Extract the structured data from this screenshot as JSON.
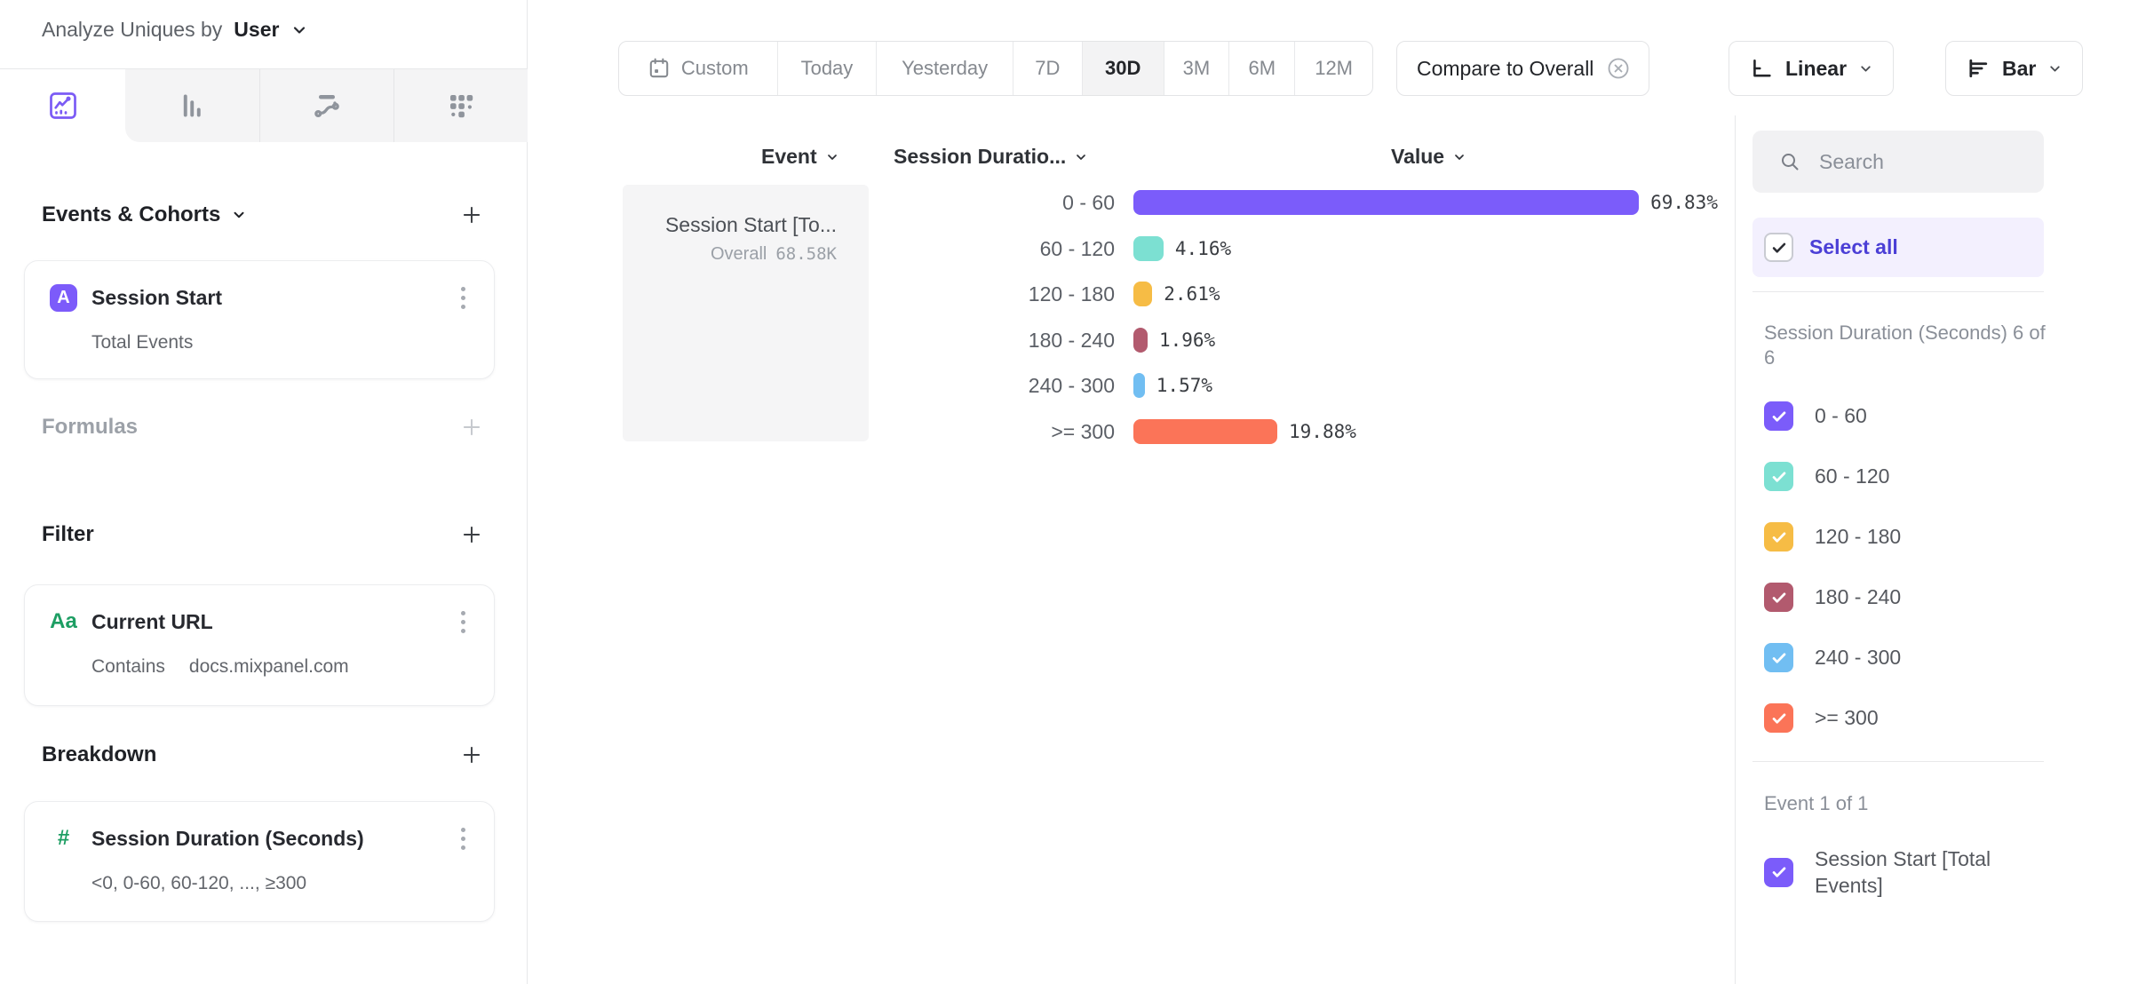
{
  "header": {
    "label": "Analyze Uniques by",
    "metric": "User"
  },
  "left_tabs": [
    {
      "name": "insights",
      "active": true
    },
    {
      "name": "bar-chart",
      "active": false
    },
    {
      "name": "flows",
      "active": false
    },
    {
      "name": "retention",
      "active": false
    }
  ],
  "builder": {
    "events_section_title": "Events & Cohorts",
    "event_card": {
      "badge": "A",
      "title": "Session Start",
      "subtitle": "Total Events"
    },
    "formulas_section_title": "Formulas",
    "filter_section_title": "Filter",
    "filter_card": {
      "badge": "Aa",
      "title": "Current URL",
      "operator": "Contains",
      "value": "docs.mixpanel.com"
    },
    "breakdown_section_title": "Breakdown",
    "breakdown_card": {
      "badge": "#",
      "title": "Session Duration (Seconds)",
      "subtitle": "<0, 0-60, 60-120, ..., ≥300"
    }
  },
  "toolbar": {
    "date_ranges": [
      "Custom",
      "Today",
      "Yesterday",
      "7D",
      "30D",
      "3M",
      "6M",
      "12M"
    ],
    "active_range": "30D",
    "compare_label": "Compare to Overall",
    "linear_label": "Linear",
    "bar_label": "Bar"
  },
  "chart": {
    "columns": {
      "event": "Event",
      "breakdown": "Session Duratio...",
      "value": "Value"
    },
    "event_name": "Session Start [To...",
    "overall_label": "Overall",
    "overall_value": "68.58K",
    "rows": [
      {
        "label": "0 - 60",
        "value": 69.83,
        "pct": "69.83%",
        "color": "#7B5CFA"
      },
      {
        "label": "60 - 120",
        "value": 4.16,
        "pct": "4.16%",
        "color": "#7CE0D2"
      },
      {
        "label": "120 - 180",
        "value": 2.61,
        "pct": "2.61%",
        "color": "#F6BC45"
      },
      {
        "label": "180 - 240",
        "value": 1.96,
        "pct": "1.96%",
        "color": "#B25A6E"
      },
      {
        "label": "240 - 300",
        "value": 1.57,
        "pct": "1.57%",
        "color": "#71BEF2"
      },
      {
        "label": ">= 300",
        "value": 19.88,
        "pct": "19.88%",
        "color": "#FB7458"
      }
    ]
  },
  "chart_data": {
    "type": "bar",
    "orientation": "horizontal",
    "categories": [
      "0 - 60",
      "60 - 120",
      "120 - 180",
      "180 - 240",
      "240 - 300",
      ">= 300"
    ],
    "values": [
      69.83,
      4.16,
      2.61,
      1.96,
      1.57,
      19.88
    ],
    "value_unit": "%",
    "series_name": "Session Start [Total Events]",
    "overall_total": "68.58K",
    "xlim": [
      0,
      75
    ]
  },
  "filters": {
    "search_placeholder": "Search",
    "select_all_label": "Select all",
    "duration_group_title": "Session Duration (Seconds) 6 of 6",
    "duration_items": [
      {
        "label": "0 - 60",
        "checked": true,
        "color": "#7B5CFA"
      },
      {
        "label": "60 - 120",
        "checked": true,
        "color": "#7CE0D2"
      },
      {
        "label": "120 - 180",
        "checked": true,
        "color": "#F6BC45"
      },
      {
        "label": "180 - 240",
        "checked": true,
        "color": "#B25A6E"
      },
      {
        "label": "240 - 300",
        "checked": true,
        "color": "#71BEF2"
      },
      {
        "label": ">= 300",
        "checked": true,
        "color": "#FB7458"
      }
    ],
    "event_group_title": "Event 1 of 1",
    "event_items": [
      {
        "label": "Session Start [Total Events]",
        "checked": true,
        "color": "#7B5CFA"
      }
    ]
  },
  "colors": {
    "accent": "#7B5CFA",
    "select_all_text": "#4B3FD6",
    "green_badge": "#1D9E63"
  }
}
